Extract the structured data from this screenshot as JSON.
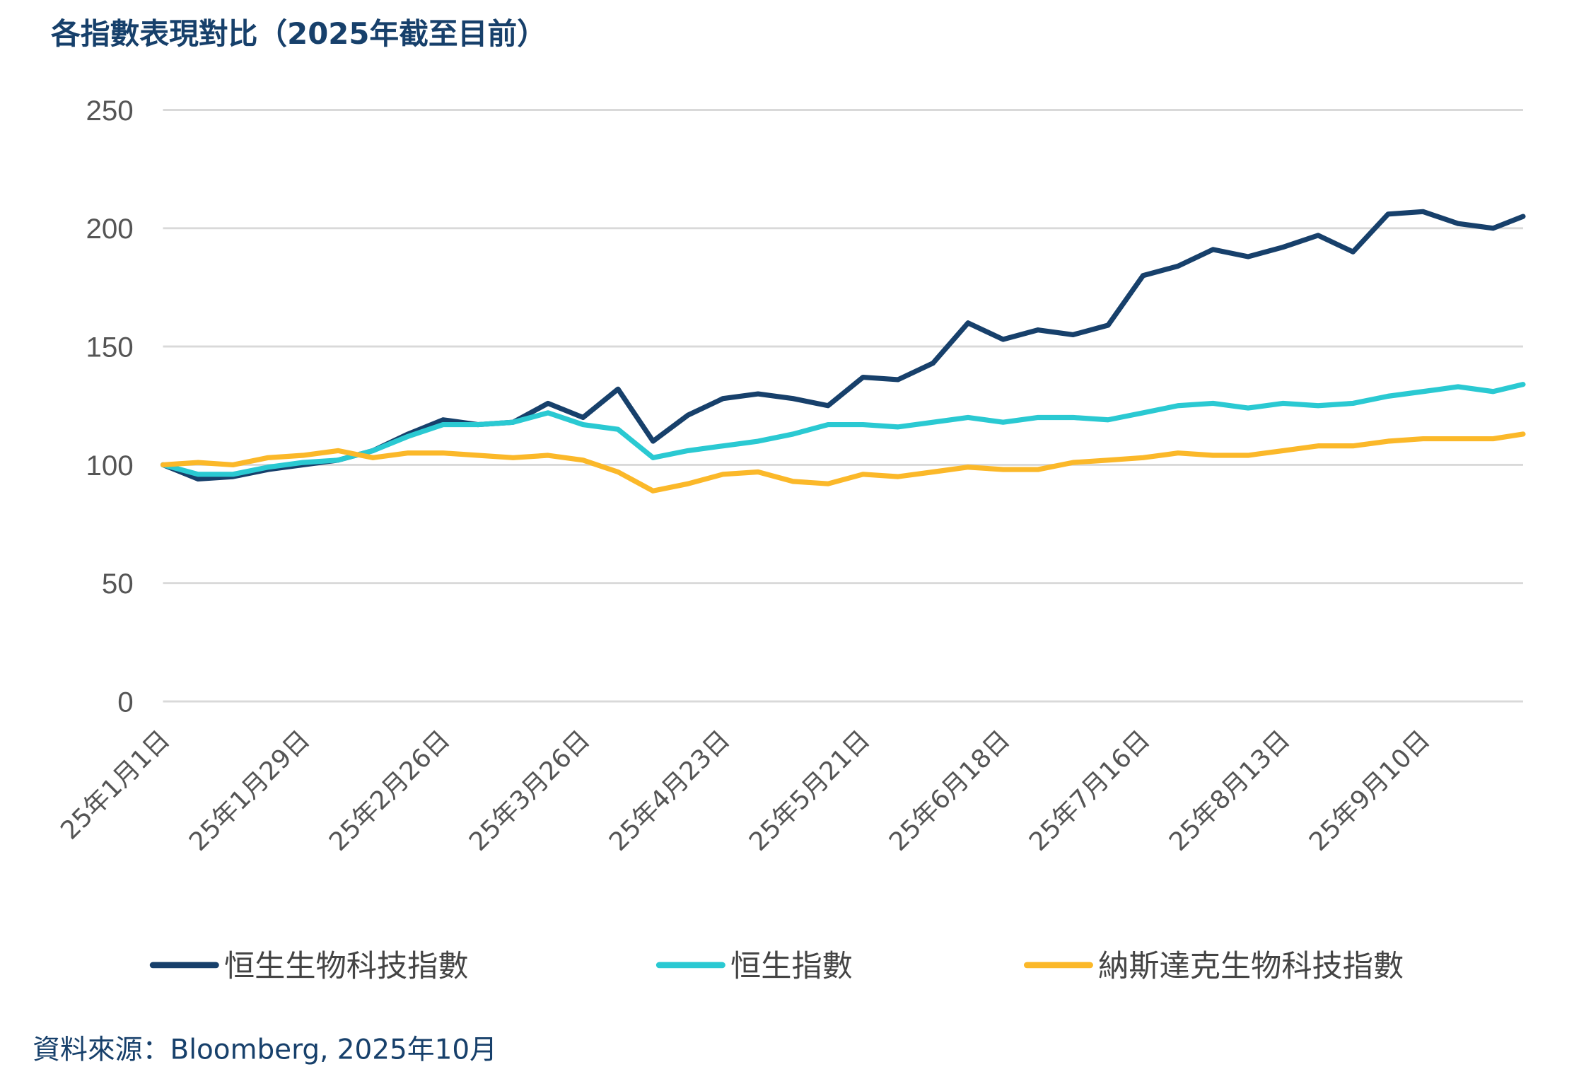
{
  "chart_data": {
    "type": "line",
    "title": "各指數表現對比（2025年截至目前）",
    "xlabel": "",
    "ylabel": "",
    "ylim": [
      0,
      250
    ],
    "yticks": [
      "0",
      "50",
      "100",
      "150",
      "200",
      "250"
    ],
    "grid": true,
    "legend_position": "bottom",
    "xtick_labels": [
      {
        "date": "2025-01-01",
        "label": "25年1月1日"
      },
      {
        "date": "2025-01-29",
        "label": "25年1月29日"
      },
      {
        "date": "2025-02-26",
        "label": "25年2月26日"
      },
      {
        "date": "2025-03-26",
        "label": "25年3月26日"
      },
      {
        "date": "2025-04-23",
        "label": "25年4月23日"
      },
      {
        "date": "2025-05-21",
        "label": "25年5月21日"
      },
      {
        "date": "2025-06-18",
        "label": "25年6月18日"
      },
      {
        "date": "2025-07-16",
        "label": "25年7月16日"
      },
      {
        "date": "2025-08-13",
        "label": "25年8月13日"
      },
      {
        "date": "2025-09-10",
        "label": "25年9月10日"
      }
    ],
    "x": [
      "2025-01-01",
      "2025-01-08",
      "2025-01-15",
      "2025-01-22",
      "2025-01-29",
      "2025-02-05",
      "2025-02-12",
      "2025-02-19",
      "2025-02-26",
      "2025-03-05",
      "2025-03-12",
      "2025-03-19",
      "2025-03-26",
      "2025-04-02",
      "2025-04-09",
      "2025-04-16",
      "2025-04-23",
      "2025-04-30",
      "2025-05-07",
      "2025-05-14",
      "2025-05-21",
      "2025-05-28",
      "2025-06-04",
      "2025-06-11",
      "2025-06-18",
      "2025-06-25",
      "2025-07-02",
      "2025-07-09",
      "2025-07-16",
      "2025-07-23",
      "2025-07-30",
      "2025-08-06",
      "2025-08-13",
      "2025-08-20",
      "2025-08-27",
      "2025-09-03",
      "2025-09-10",
      "2025-09-17",
      "2025-09-24",
      "2025-09-30"
    ],
    "series": [
      {
        "name": "恒生生物科技指數",
        "color": "#17406b",
        "values": [
          100,
          94,
          95,
          98,
          100,
          102,
          106,
          113,
          119,
          117,
          118,
          126,
          120,
          132,
          110,
          121,
          128,
          130,
          128,
          125,
          137,
          136,
          143,
          160,
          153,
          157,
          155,
          159,
          180,
          184,
          191,
          188,
          192,
          197,
          190,
          206,
          207,
          202,
          200,
          205
        ]
      },
      {
        "name": "恒生指數",
        "color": "#2ac9d2",
        "values": [
          100,
          96,
          96,
          99,
          101,
          102,
          106,
          112,
          117,
          117,
          118,
          122,
          117,
          115,
          103,
          106,
          108,
          110,
          113,
          117,
          117,
          116,
          118,
          120,
          118,
          120,
          120,
          119,
          122,
          125,
          126,
          124,
          126,
          125,
          126,
          129,
          131,
          133,
          131,
          134
        ]
      },
      {
        "name": "納斯達克生物科技指數",
        "color": "#fbb829",
        "values": [
          100,
          101,
          100,
          103,
          104,
          106,
          103,
          105,
          105,
          104,
          103,
          104,
          102,
          97,
          89,
          92,
          96,
          97,
          93,
          92,
          96,
          95,
          97,
          99,
          98,
          98,
          101,
          102,
          103,
          105,
          104,
          104,
          106,
          108,
          108,
          110,
          111,
          111,
          111,
          113
        ]
      }
    ]
  },
  "source": "資料來源：Bloomberg, 2025年10月"
}
